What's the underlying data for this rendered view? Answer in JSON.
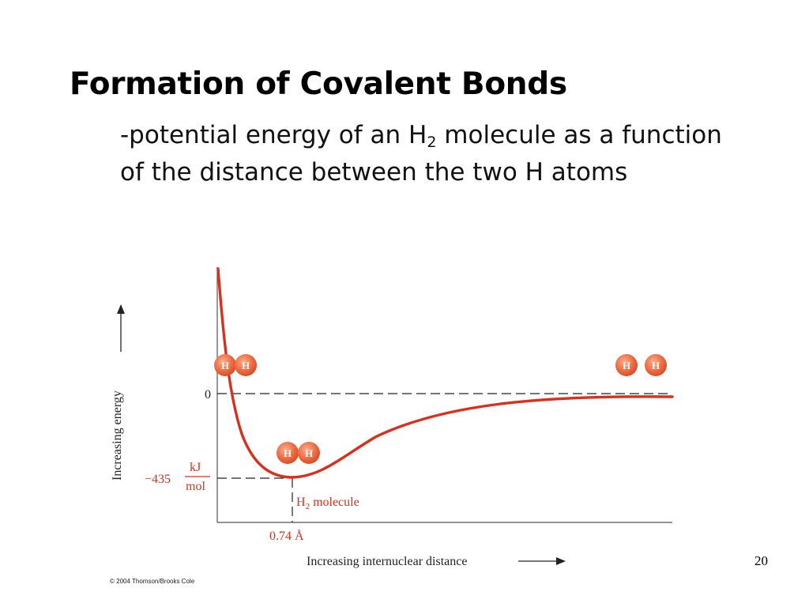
{
  "slide": {
    "title": "Formation of Covalent Bonds",
    "subtitle_prefix": "-potential energy of an H",
    "subtitle_sub": "2",
    "subtitle_suffix": " molecule as a function of the distance between the two H atoms",
    "page_number": "20",
    "copyright": "© 2004 Thomson/Brooks Cole"
  },
  "diagram": {
    "y_axis_label": "Increasing energy",
    "x_axis_label": "Increasing internuclear distance",
    "zero_label": "0",
    "min_energy_value": "−435",
    "unit_numerator": "kJ",
    "unit_denominator": "mol",
    "bond_length_label": "0.74 Å",
    "molecule_label_prefix": "H",
    "molecule_label_sub": "2",
    "molecule_label_suffix": " molecule",
    "atom_symbol": "H",
    "colors": {
      "curve": "#d9301e",
      "atom_fill": "#ee6e46",
      "axis": "#555555",
      "dashed": "#222222"
    }
  }
}
